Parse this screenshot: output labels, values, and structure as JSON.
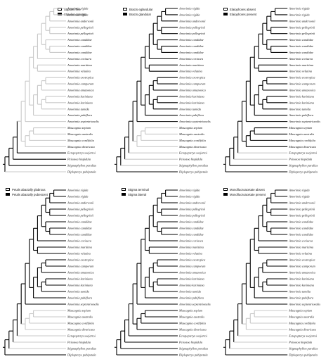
{
  "palette": {
    "state_0": "#c8c8c8",
    "state_1": "#000000"
  },
  "taxa": [
    "Amorimia rigida",
    "Amorimia rigida",
    "Amorimia andersonii",
    "Amorimia pellegrinii",
    "Amorimia pellegrinii",
    "Amorimia candidae",
    "Amorimia candidae",
    "Amorimia candidae",
    "Amorimia coriacea",
    "Amorimia maritima",
    "Amorimia velutina",
    "Amorimia exotropica",
    "Amorimia camporum",
    "Amorimia amazonica",
    "Amorimia kariniana",
    "Amorimia kariniana",
    "Amorimia tumida",
    "Amorimia pubiflora",
    "Amorimia septentrionalis",
    "Mascagnia sepium",
    "Mascagnia australis",
    "Mascagnia cordifolia",
    "Mascagnia divaricata",
    "Ectopopterys soejartoi",
    "Peixotoa hispidula",
    "Stigmaphyllon paralias",
    "Diplopterys pubipetala"
  ],
  "panels": [
    {
      "legend": [
        {
          "label": "Stipules free",
          "state": 0
        },
        {
          "label": "Stipules connate",
          "state": 1
        }
      ],
      "states": {
        "default": 0,
        "black": [
          "Ectopopterys soejartoi",
          "Peixotoa hispidula",
          "Stigmaphyllon paralias"
        ]
      }
    },
    {
      "legend": [
        {
          "label": "Bracts eglandular",
          "state": 0
        },
        {
          "label": "Bracts glandular",
          "state": 1
        }
      ],
      "states": {
        "default": 1,
        "grey": [
          "Mascagnia sepium",
          "Mascagnia australis",
          "Mascagnia cordifolia",
          "Mascagnia divaricata",
          "Ectopopterys soejartoi",
          "Peixotoa hispidula",
          "Stigmaphyllon paralias"
        ]
      }
    },
    {
      "legend": [
        {
          "label": "Elaiophores absent",
          "state": 0
        },
        {
          "label": "Elaiophores present",
          "state": 1
        }
      ],
      "states": {
        "default": 1,
        "grey": [
          "Ectopopterys soejartoi",
          "Peixotoa hispidula"
        ]
      }
    },
    {
      "legend": [
        {
          "label": "Petals abaxially glabrous",
          "state": 0
        },
        {
          "label": "Petals abaxially pubescent",
          "state": 1
        }
      ],
      "states": {
        "default": 1,
        "grey": [
          "Mascagnia sepium",
          "Mascagnia australis",
          "Mascagnia cordifolia",
          "Mascagnia divaricata",
          "Ectopopterys soejartoi",
          "Peixotoa hispidula",
          "Stigmaphyllon paralias"
        ]
      }
    },
    {
      "legend": [
        {
          "label": "Stigma terminal",
          "state": 0
        },
        {
          "label": "Stigma lateral",
          "state": 1
        }
      ],
      "states": {
        "default": 1,
        "grey": []
      }
    },
    {
      "legend": [
        {
          "label": "Monofluoroacetate absent",
          "state": 0
        },
        {
          "label": "Monofluoroacetate present",
          "state": 1
        }
      ],
      "states": {
        "default": 1,
        "grey": [
          "Mascagnia sepium",
          "Mascagnia australis",
          "Mascagnia cordifolia",
          "Mascagnia divaricata",
          "Ectopopterys soejartoi",
          "Peixotoa hispidula",
          "Stigmaphyllon paralias"
        ]
      }
    }
  ]
}
